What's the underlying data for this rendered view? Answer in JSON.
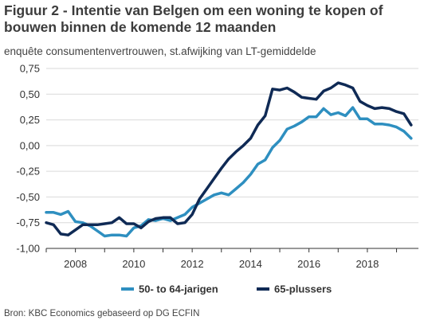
{
  "header": {
    "title": "Figuur 2 - Intentie van Belgen om een woning te kopen of bouwen binnen de komende 12 maanden",
    "subtitle": "enquête consumentenvertrouwen, st.afwijking van LT-gemiddelde"
  },
  "footer": {
    "source": "Bron: KBC Economics gebaseerd op DG ECFIN"
  },
  "colors": {
    "series_1": "#2e8fc0",
    "series_2": "#0f2a55"
  },
  "chart_data": {
    "type": "line",
    "title": "Figuur 2 - Intentie van Belgen om een woning te kopen of bouwen binnen de komende 12 maanden",
    "subtitle": "enquête consumentenvertrouwen, st.afwijking van LT-gemiddelde",
    "xlabel": "",
    "ylabel": "",
    "xlim": [
      2007,
      2019.75
    ],
    "ylim": [
      -1.0,
      0.75
    ],
    "y_ticks": [
      "0,75",
      "0,50",
      "0,25",
      "0,00",
      "-0,25",
      "-0,50",
      "-0,75",
      "-1,00"
    ],
    "y_tick_values": [
      0.75,
      0.5,
      0.25,
      0.0,
      -0.25,
      -0.5,
      -0.75,
      -1.0
    ],
    "x_ticks": [
      "2008",
      "2010",
      "2012",
      "2014",
      "2016",
      "2018"
    ],
    "x_tick_values": [
      2008,
      2010,
      2012,
      2014,
      2016,
      2018
    ],
    "grid": "horizontal",
    "legend": "bottom",
    "x": [
      2007.0,
      2007.25,
      2007.5,
      2007.75,
      2008.0,
      2008.25,
      2008.5,
      2008.75,
      2009.0,
      2009.25,
      2009.5,
      2009.75,
      2010.0,
      2010.25,
      2010.5,
      2010.75,
      2011.0,
      2011.25,
      2011.5,
      2011.75,
      2012.0,
      2012.25,
      2012.5,
      2012.75,
      2013.0,
      2013.25,
      2013.5,
      2013.75,
      2014.0,
      2014.25,
      2014.5,
      2014.75,
      2015.0,
      2015.25,
      2015.5,
      2015.75,
      2016.0,
      2016.25,
      2016.5,
      2016.75,
      2017.0,
      2017.25,
      2017.5,
      2017.75,
      2018.0,
      2018.25,
      2018.5,
      2018.75,
      2019.0,
      2019.25,
      2019.5
    ],
    "series": [
      {
        "name": "50- to 64-jarigen",
        "values": [
          -0.65,
          -0.65,
          -0.67,
          -0.64,
          -0.74,
          -0.75,
          -0.78,
          -0.83,
          -0.88,
          -0.87,
          -0.87,
          -0.88,
          -0.8,
          -0.78,
          -0.72,
          -0.73,
          -0.71,
          -0.73,
          -0.7,
          -0.67,
          -0.6,
          -0.56,
          -0.52,
          -0.48,
          -0.46,
          -0.48,
          -0.42,
          -0.36,
          -0.28,
          -0.18,
          -0.14,
          -0.02,
          0.05,
          0.16,
          0.19,
          0.23,
          0.28,
          0.28,
          0.36,
          0.3,
          0.32,
          0.29,
          0.37,
          0.26,
          0.26,
          0.21,
          0.21,
          0.2,
          0.18,
          0.14,
          0.07
        ]
      },
      {
        "name": "65-plussers",
        "values": [
          -0.75,
          -0.77,
          -0.86,
          -0.87,
          -0.82,
          -0.77,
          -0.77,
          -0.77,
          -0.76,
          -0.75,
          -0.7,
          -0.76,
          -0.76,
          -0.8,
          -0.74,
          -0.71,
          -0.7,
          -0.7,
          -0.76,
          -0.75,
          -0.67,
          -0.52,
          -0.42,
          -0.32,
          -0.22,
          -0.13,
          -0.06,
          0.0,
          0.07,
          0.2,
          0.29,
          0.55,
          0.54,
          0.56,
          0.52,
          0.47,
          0.46,
          0.45,
          0.53,
          0.56,
          0.61,
          0.59,
          0.56,
          0.43,
          0.39,
          0.36,
          0.37,
          0.36,
          0.33,
          0.31,
          0.2
        ]
      }
    ]
  }
}
